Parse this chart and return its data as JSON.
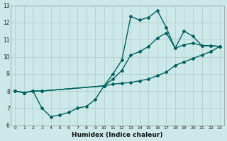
{
  "xlabel": "Humidex (Indice chaleur)",
  "ylabel": "",
  "xlim": [
    -0.5,
    23.5
  ],
  "ylim": [
    6,
    13
  ],
  "yticks": [
    6,
    7,
    8,
    9,
    10,
    11,
    12,
    13
  ],
  "xticks": [
    0,
    1,
    2,
    3,
    4,
    5,
    6,
    7,
    8,
    9,
    10,
    11,
    12,
    13,
    14,
    15,
    16,
    17,
    18,
    19,
    20,
    21,
    22,
    23
  ],
  "bg_color": "#cce8e8",
  "line_color": "#006060",
  "grid_color": "#b0d0d0",
  "line1_x": [
    0,
    1,
    2,
    3,
    10,
    11,
    12,
    13,
    14,
    15,
    16,
    17,
    18,
    19,
    20,
    21,
    22,
    23
  ],
  "line1_y": [
    8.0,
    7.9,
    8.0,
    8.0,
    8.3,
    9.0,
    9.8,
    12.35,
    12.15,
    12.3,
    12.7,
    11.7,
    10.5,
    11.5,
    11.2,
    10.65,
    10.65,
    10.6
  ],
  "line2_x": [
    0,
    1,
    2,
    3,
    10,
    11,
    12,
    13,
    14,
    15,
    16,
    17,
    18,
    19,
    20,
    21,
    22,
    23
  ],
  "line2_y": [
    8.0,
    7.9,
    8.0,
    8.0,
    8.3,
    8.7,
    9.2,
    10.1,
    10.3,
    10.6,
    11.1,
    11.4,
    10.5,
    10.7,
    10.8,
    10.65,
    10.65,
    10.6
  ],
  "line3_x": [
    0,
    1,
    2,
    3,
    4,
    5,
    6,
    7,
    8,
    9,
    10,
    11,
    12,
    13,
    14,
    15,
    16,
    17,
    18,
    19,
    20,
    21,
    22,
    23
  ],
  "line3_y": [
    8.0,
    7.9,
    8.0,
    7.0,
    6.5,
    6.6,
    6.75,
    7.0,
    7.1,
    7.5,
    8.3,
    8.4,
    8.45,
    8.5,
    8.6,
    8.7,
    8.9,
    9.1,
    9.5,
    9.7,
    9.9,
    10.1,
    10.3,
    10.6
  ],
  "marker": "D",
  "markersize": 2.0,
  "linewidth": 1.0
}
